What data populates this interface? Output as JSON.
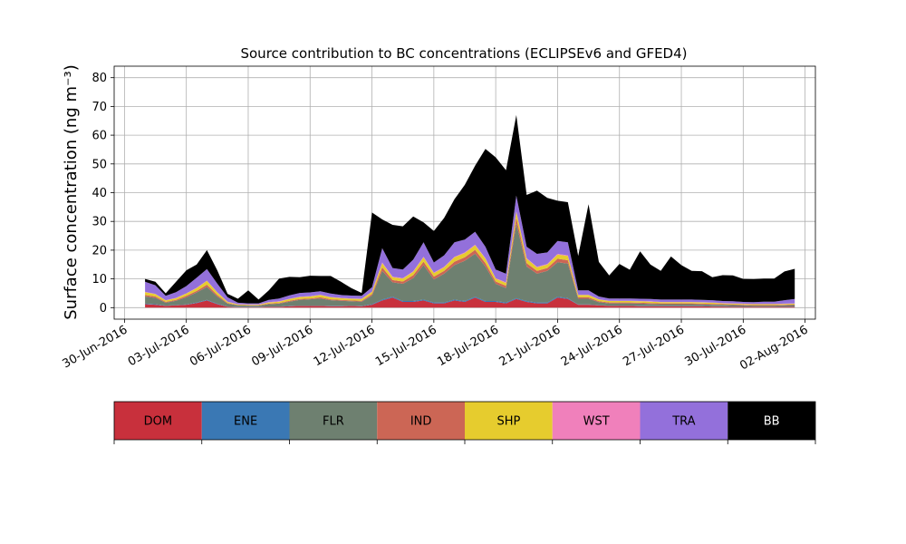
{
  "chart_data": {
    "type": "area",
    "title": "Source contribution to BC concentrations (ECLIPSEv6 and GFED4)",
    "ylabel": "Surface concentration (ng m⁻³)",
    "xlabel": "",
    "x_range": [
      "2016-06-29T12:00",
      "2016-08-02T12:00"
    ],
    "ylim": [
      -4,
      84
    ],
    "y_ticks": [
      0,
      10,
      20,
      30,
      40,
      50,
      60,
      70,
      80
    ],
    "x_ticks": [
      {
        "date": "2016-06-30",
        "label": "30-Jun-2016"
      },
      {
        "date": "2016-07-03",
        "label": "03-Jul-2016"
      },
      {
        "date": "2016-07-06",
        "label": "06-Jul-2016"
      },
      {
        "date": "2016-07-09",
        "label": "09-Jul-2016"
      },
      {
        "date": "2016-07-12",
        "label": "12-Jul-2016"
      },
      {
        "date": "2016-07-15",
        "label": "15-Jul-2016"
      },
      {
        "date": "2016-07-18",
        "label": "18-Jul-2016"
      },
      {
        "date": "2016-07-21",
        "label": "21-Jul-2016"
      },
      {
        "date": "2016-07-24",
        "label": "24-Jul-2016"
      },
      {
        "date": "2016-07-27",
        "label": "27-Jul-2016"
      },
      {
        "date": "2016-07-30",
        "label": "30-Jul-2016"
      },
      {
        "date": "2016-08-02",
        "label": "02-Aug-2016"
      }
    ],
    "grid": true,
    "stacked": true,
    "x": [
      "2016-07-01",
      "2016-07-01T12:00",
      "2016-07-02",
      "2016-07-02T12:00",
      "2016-07-03",
      "2016-07-03T12:00",
      "2016-07-04",
      "2016-07-04T12:00",
      "2016-07-05",
      "2016-07-05T12:00",
      "2016-07-06",
      "2016-07-06T12:00",
      "2016-07-07",
      "2016-07-07T12:00",
      "2016-07-08",
      "2016-07-08T12:00",
      "2016-07-09",
      "2016-07-09T12:00",
      "2016-07-10",
      "2016-07-10T12:00",
      "2016-07-11",
      "2016-07-11T12:00",
      "2016-07-12",
      "2016-07-12T12:00",
      "2016-07-13",
      "2016-07-13T12:00",
      "2016-07-14",
      "2016-07-14T12:00",
      "2016-07-15",
      "2016-07-15T12:00",
      "2016-07-16",
      "2016-07-16T12:00",
      "2016-07-17",
      "2016-07-17T12:00",
      "2016-07-18",
      "2016-07-18T12:00",
      "2016-07-19",
      "2016-07-19T12:00",
      "2016-07-20",
      "2016-07-20T12:00",
      "2016-07-21",
      "2016-07-21T12:00",
      "2016-07-22",
      "2016-07-22T12:00",
      "2016-07-23",
      "2016-07-23T12:00",
      "2016-07-24",
      "2016-07-24T12:00",
      "2016-07-25",
      "2016-07-25T12:00",
      "2016-07-26",
      "2016-07-26T12:00",
      "2016-07-27",
      "2016-07-27T12:00",
      "2016-07-28",
      "2016-07-28T12:00",
      "2016-07-29",
      "2016-07-29T12:00",
      "2016-07-30",
      "2016-07-30T12:00",
      "2016-07-31",
      "2016-07-31T12:00",
      "2016-08-01",
      "2016-08-01T12:00"
    ],
    "series": [
      {
        "name": "DOM",
        "color": "#c8303c",
        "values": [
          1.2,
          1.0,
          0.6,
          0.8,
          1.0,
          1.6,
          2.5,
          1.2,
          0.3,
          0.2,
          0.2,
          0.2,
          0.3,
          0.3,
          0.5,
          0.6,
          0.6,
          0.6,
          0.5,
          0.5,
          0.6,
          0.5,
          1.0,
          2.5,
          3.5,
          2.0,
          2.0,
          2.5,
          1.5,
          1.5,
          2.5,
          2.0,
          3.5,
          2.0,
          2.0,
          1.5,
          3.0,
          2.0,
          1.5,
          1.5,
          3.5,
          3.0,
          1.0,
          1.0,
          0.8,
          0.6,
          0.6,
          0.6,
          0.5,
          0.5,
          0.5,
          0.5,
          0.5,
          0.5,
          0.5,
          0.4,
          0.4,
          0.3,
          0.3,
          0.3,
          0.3,
          0.3,
          0.3,
          0.3
        ]
      },
      {
        "name": "ENE",
        "color": "#3a78b4",
        "values": [
          0.2,
          0.2,
          0.1,
          0.1,
          0.1,
          0.2,
          0.2,
          0.2,
          0.1,
          0.1,
          0.1,
          0.1,
          0.1,
          0.1,
          0.1,
          0.1,
          0.1,
          0.1,
          0.1,
          0.1,
          0.1,
          0.1,
          0.2,
          0.3,
          0.3,
          0.3,
          0.3,
          0.3,
          0.3,
          0.3,
          0.3,
          0.3,
          0.3,
          0.3,
          0.3,
          0.3,
          0.3,
          0.3,
          0.3,
          0.3,
          0.3,
          0.3,
          0.1,
          0.1,
          0.1,
          0.1,
          0.1,
          0.1,
          0.1,
          0.1,
          0.1,
          0.1,
          0.1,
          0.1,
          0.1,
          0.1,
          0.1,
          0.1,
          0.1,
          0.1,
          0.1,
          0.1,
          0.1,
          0.1
        ]
      },
      {
        "name": "FLR",
        "color": "#6e8070",
        "values": [
          2.5,
          2.2,
          1.0,
          1.5,
          2.5,
          3.5,
          4.5,
          2.5,
          1.0,
          0.5,
          0.4,
          0.4,
          0.8,
          1.0,
          1.5,
          2.0,
          2.2,
          2.5,
          2.0,
          1.8,
          1.5,
          1.5,
          3.0,
          10.0,
          5.0,
          6.0,
          8.0,
          12.0,
          8.0,
          10.0,
          12.0,
          14.0,
          15.0,
          12.0,
          6.0,
          5.0,
          26.0,
          12.0,
          10.0,
          11.0,
          12.0,
          12.0,
          2.0,
          2.0,
          1.0,
          0.8,
          0.8,
          0.8,
          0.8,
          0.7,
          0.6,
          0.6,
          0.6,
          0.6,
          0.5,
          0.5,
          0.5,
          0.5,
          0.4,
          0.3,
          0.3,
          0.3,
          0.4,
          0.5
        ]
      },
      {
        "name": "IND",
        "color": "#cc6655",
        "values": [
          0.5,
          0.5,
          0.3,
          0.3,
          0.5,
          0.5,
          0.8,
          0.5,
          0.2,
          0.1,
          0.1,
          0.1,
          0.2,
          0.2,
          0.3,
          0.3,
          0.3,
          0.4,
          0.3,
          0.3,
          0.3,
          0.3,
          0.5,
          1.2,
          0.8,
          0.8,
          1.0,
          1.2,
          1.0,
          1.0,
          1.2,
          1.2,
          1.3,
          1.2,
          0.8,
          0.8,
          2.0,
          1.2,
          1.0,
          1.0,
          1.2,
          1.2,
          0.5,
          0.5,
          0.3,
          0.3,
          0.3,
          0.3,
          0.3,
          0.3,
          0.3,
          0.3,
          0.3,
          0.3,
          0.3,
          0.3,
          0.2,
          0.2,
          0.2,
          0.2,
          0.2,
          0.2,
          0.2,
          0.2
        ]
      },
      {
        "name": "SHP",
        "color": "#e6cc2e",
        "values": [
          1.0,
          0.8,
          0.5,
          0.6,
          0.8,
          1.0,
          1.3,
          0.9,
          0.4,
          0.2,
          0.2,
          0.2,
          0.4,
          0.5,
          0.6,
          0.7,
          0.7,
          0.8,
          0.7,
          0.6,
          0.6,
          0.6,
          0.8,
          1.5,
          1.0,
          1.0,
          1.2,
          1.5,
          1.2,
          1.2,
          1.5,
          1.5,
          1.6,
          1.5,
          1.0,
          1.0,
          2.0,
          1.5,
          1.2,
          1.2,
          1.5,
          1.5,
          0.8,
          0.8,
          0.6,
          0.5,
          0.5,
          0.5,
          0.5,
          0.5,
          0.4,
          0.4,
          0.4,
          0.4,
          0.4,
          0.4,
          0.3,
          0.3,
          0.3,
          0.3,
          0.3,
          0.3,
          0.3,
          0.3
        ]
      },
      {
        "name": "WST",
        "color": "#f080bb",
        "values": [
          0.1,
          0.1,
          0.1,
          0.1,
          0.1,
          0.1,
          0.1,
          0.1,
          0.1,
          0.1,
          0.1,
          0.1,
          0.1,
          0.1,
          0.1,
          0.1,
          0.1,
          0.1,
          0.1,
          0.1,
          0.1,
          0.1,
          0.1,
          0.2,
          0.2,
          0.2,
          0.2,
          0.2,
          0.2,
          0.2,
          0.2,
          0.2,
          0.2,
          0.2,
          0.2,
          0.2,
          0.2,
          0.2,
          0.2,
          0.2,
          0.2,
          0.2,
          0.1,
          0.1,
          0.1,
          0.1,
          0.1,
          0.1,
          0.1,
          0.1,
          0.1,
          0.1,
          0.1,
          0.1,
          0.1,
          0.1,
          0.1,
          0.1,
          0.1,
          0.1,
          0.1,
          0.1,
          0.1,
          0.1
        ]
      },
      {
        "name": "TRA",
        "color": "#9370db",
        "values": [
          3.5,
          3.0,
          1.5,
          2.0,
          2.5,
          3.5,
          4.0,
          3.0,
          1.5,
          0.5,
          0.4,
          0.4,
          0.8,
          1.0,
          1.2,
          1.3,
          1.3,
          1.2,
          1.2,
          1.0,
          1.0,
          1.0,
          1.5,
          5.0,
          3.0,
          3.0,
          4.0,
          5.0,
          3.5,
          4.0,
          5.0,
          4.5,
          4.5,
          4.0,
          3.0,
          3.0,
          5.5,
          4.0,
          4.5,
          4.0,
          4.5,
          4.5,
          1.5,
          1.5,
          1.0,
          0.8,
          0.8,
          0.8,
          0.8,
          0.8,
          0.8,
          0.8,
          0.8,
          0.8,
          0.8,
          0.8,
          0.7,
          0.7,
          0.6,
          0.6,
          0.8,
          0.8,
          1.2,
          1.5
        ]
      },
      {
        "name": "BB",
        "color": "#000000",
        "values": [
          1.0,
          1.2,
          0.9,
          3.6,
          5.5,
          4.6,
          6.6,
          4.6,
          1.2,
          1.4,
          4.5,
          1.3,
          3.3,
          6.9,
          6.4,
          5.5,
          5.8,
          5.3,
          6.1,
          4.6,
          2.6,
          1.0,
          26.0,
          10.0,
          15.0,
          15.0,
          15.0,
          7.0,
          11.0,
          13.0,
          15.0,
          19.0,
          23.0,
          34.0,
          39.0,
          36.0,
          28.0,
          18.0,
          22.0,
          19.0,
          14.0,
          14.0,
          12.0,
          30.0,
          12.0,
          8.0,
          12.0,
          10.0,
          16.5,
          12.0,
          10.0,
          15.0,
          12.0,
          10.0,
          10.0,
          8.0,
          9.0,
          9.0,
          8.0,
          8.0,
          8.0,
          8.0,
          10.0,
          10.5
        ]
      }
    ]
  }
}
